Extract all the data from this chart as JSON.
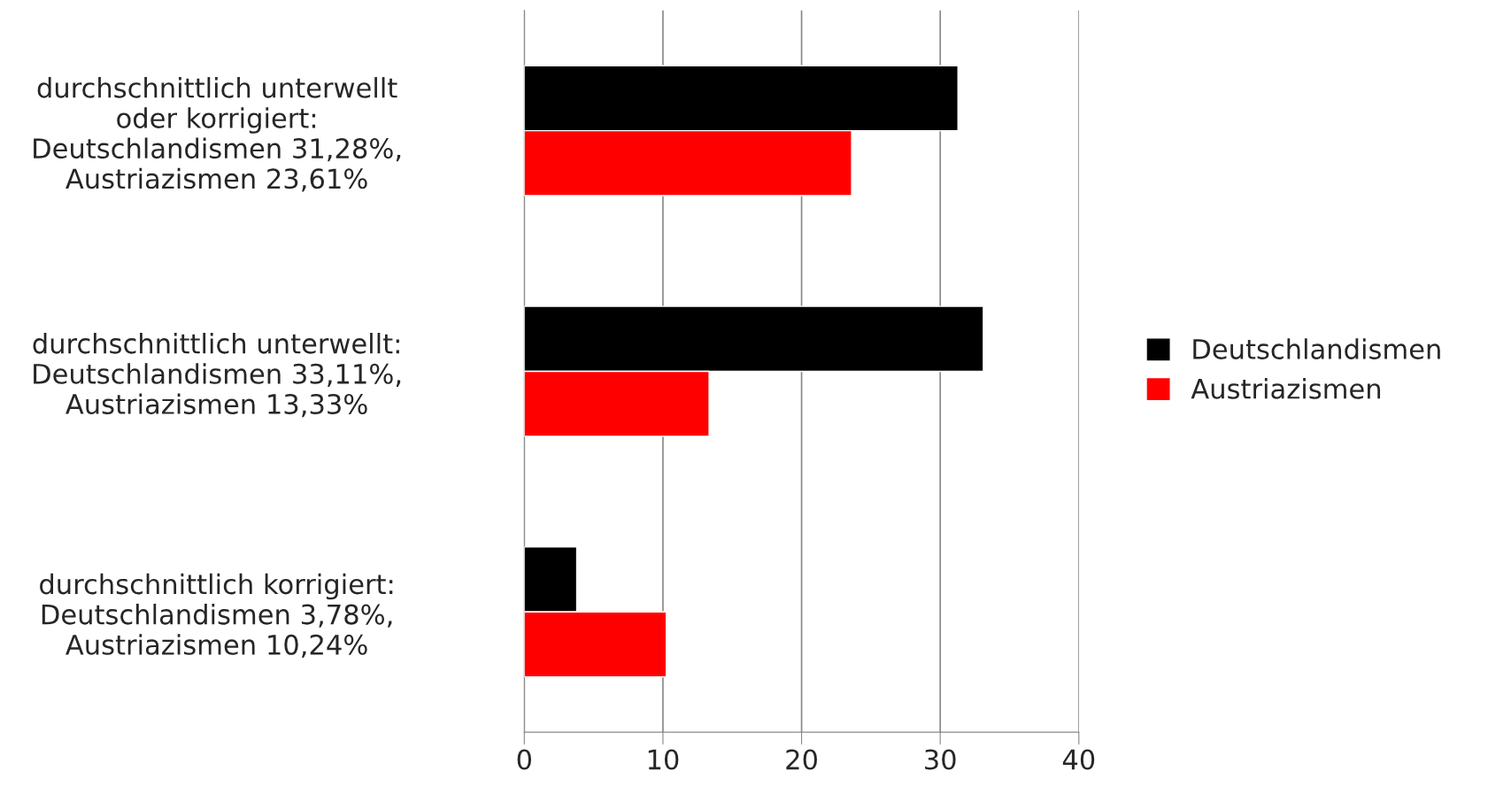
{
  "chart_data": {
    "type": "bar",
    "orientation": "horizontal",
    "categories": [
      "durchschnittlich unterwellt\noder korrigiert:\nDeutschlandismen 31,28%,\nAustriazismen 23,61%",
      "durchschnittlich unterwellt:\nDeutschlandismen 33,11%,\nAustriazismen 13,33%",
      "durchschnittlich korrigiert:\nDeutschlandismen 3,78%,\nAustriazismen 10,24%"
    ],
    "series": [
      {
        "name": "Deutschlandismen",
        "color": "#000000",
        "values": [
          31.28,
          33.11,
          3.78
        ]
      },
      {
        "name": "Austriazismen",
        "color": "#ff0000",
        "values": [
          23.61,
          13.33,
          10.24
        ]
      }
    ],
    "xlim": [
      0,
      40
    ],
    "xticks": [
      0,
      10,
      20,
      30,
      40
    ],
    "grid": "x",
    "legend": "right"
  }
}
